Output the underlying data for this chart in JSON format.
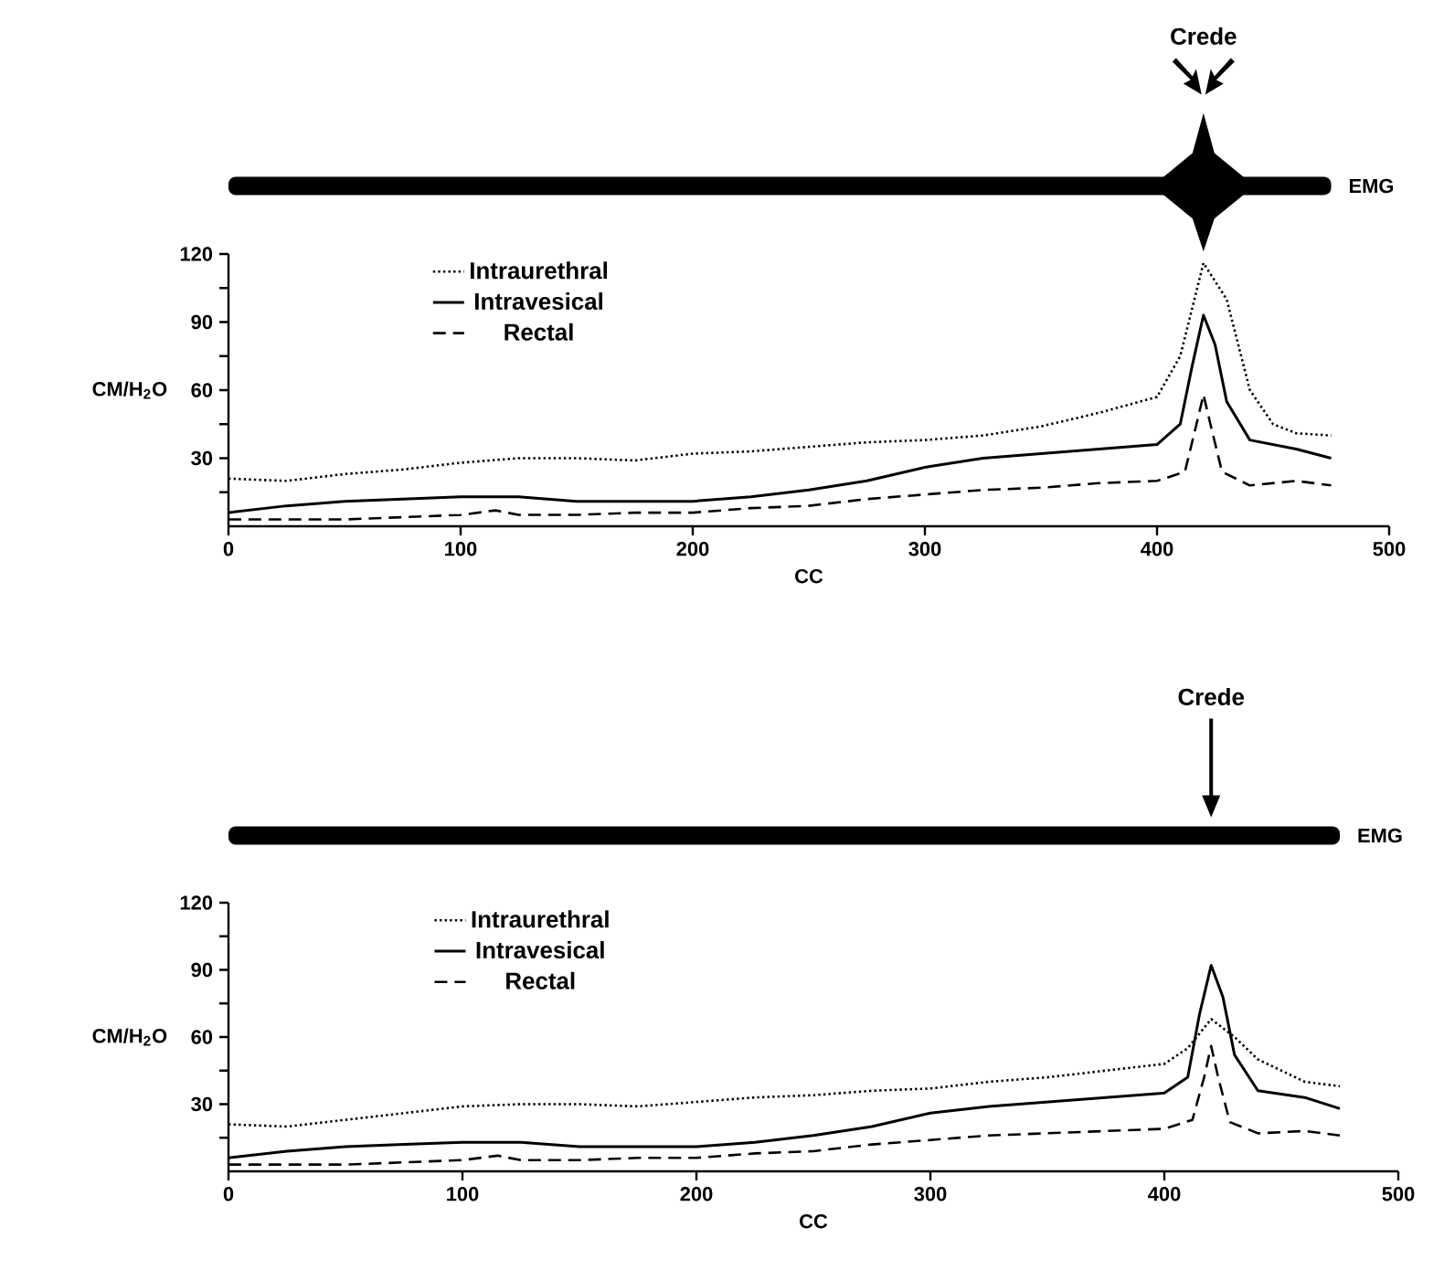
{
  "chart_data": [
    {
      "type": "line",
      "xlabel": "CC",
      "ylabel": "CM/H$_{2}$O",
      "xlim": [
        0,
        500
      ],
      "ylim": [
        0,
        120
      ],
      "xticks": [
        0,
        100,
        200,
        300,
        400,
        500
      ],
      "yticks": [
        {
          "value": 15,
          "label": null
        },
        30,
        {
          "value": 45,
          "label": null
        },
        60,
        {
          "value": 75,
          "label": null
        },
        90,
        {
          "value": 105,
          "label": null
        },
        120
      ],
      "grid": false,
      "legend": "top left",
      "annotations": [
        "Crede",
        "EMG"
      ],
      "series": [
        {
          "name": "Intraurethral",
          "color": "#000000",
          "line_style": "dotted",
          "x": [
            0,
            25,
            50,
            75,
            100,
            125,
            150,
            175,
            200,
            225,
            250,
            275,
            300,
            325,
            350,
            375,
            400,
            410,
            420,
            430,
            440,
            450,
            460,
            475
          ],
          "values": [
            21,
            20,
            23,
            25,
            28,
            30,
            30,
            29,
            32,
            33,
            35,
            37,
            38,
            40,
            44,
            50,
            57,
            75,
            116,
            100,
            60,
            45,
            41,
            40
          ]
        },
        {
          "name": "Intravesical",
          "color": "#000000",
          "line_style": "solid",
          "x": [
            0,
            25,
            50,
            75,
            100,
            125,
            150,
            175,
            200,
            225,
            250,
            275,
            300,
            325,
            350,
            375,
            400,
            410,
            415,
            420,
            425,
            430,
            440,
            460,
            475
          ],
          "values": [
            6,
            9,
            11,
            12,
            13,
            13,
            11,
            11,
            11,
            13,
            16,
            20,
            26,
            30,
            32,
            34,
            36,
            45,
            70,
            93,
            80,
            55,
            38,
            34,
            30
          ]
        },
        {
          "name": "Rectal",
          "color": "#000000",
          "line_style": "dashed",
          "x": [
            0,
            25,
            50,
            75,
            100,
            115,
            125,
            150,
            175,
            200,
            225,
            250,
            275,
            300,
            325,
            350,
            375,
            400,
            412,
            417,
            420,
            423,
            428,
            440,
            460,
            475
          ],
          "values": [
            3,
            3,
            3,
            4,
            5,
            7,
            5,
            5,
            6,
            6,
            8,
            9,
            12,
            14,
            16,
            17,
            19,
            20,
            24,
            45,
            58,
            45,
            24,
            18,
            20,
            18
          ]
        }
      ]
    },
    {
      "type": "line",
      "xlabel": "CC",
      "ylabel": "CM/H$_{2}$O",
      "xlim": [
        0,
        500
      ],
      "ylim": [
        0,
        120
      ],
      "xticks": [
        0,
        100,
        200,
        300,
        400,
        500
      ],
      "yticks": [
        {
          "value": 15,
          "label": null
        },
        30,
        {
          "value": 45,
          "label": null
        },
        60,
        {
          "value": 75,
          "label": null
        },
        90,
        {
          "value": 105,
          "label": null
        },
        120
      ],
      "grid": false,
      "legend": "top left",
      "annotations": [
        "Crede",
        "EMG"
      ],
      "series": [
        {
          "name": "Intraurethral",
          "color": "#000000",
          "line_style": "dotted",
          "x": [
            0,
            25,
            50,
            75,
            100,
            125,
            150,
            175,
            200,
            225,
            250,
            275,
            300,
            325,
            350,
            375,
            400,
            410,
            420,
            430,
            440,
            460,
            475
          ],
          "values": [
            21,
            20,
            23,
            26,
            29,
            30,
            30,
            29,
            31,
            33,
            34,
            36,
            37,
            40,
            42,
            45,
            48,
            55,
            68,
            60,
            50,
            40,
            38
          ]
        },
        {
          "name": "Intravesical",
          "color": "#000000",
          "line_style": "solid",
          "x": [
            0,
            25,
            50,
            75,
            100,
            125,
            150,
            175,
            200,
            225,
            250,
            275,
            300,
            325,
            350,
            375,
            400,
            410,
            415,
            420,
            425,
            430,
            440,
            460,
            475
          ],
          "values": [
            6,
            9,
            11,
            12,
            13,
            13,
            11,
            11,
            11,
            13,
            16,
            20,
            26,
            29,
            31,
            33,
            35,
            42,
            70,
            92,
            78,
            52,
            36,
            33,
            28
          ]
        },
        {
          "name": "Rectal",
          "color": "#000000",
          "line_style": "dashed",
          "x": [
            0,
            25,
            50,
            75,
            100,
            115,
            125,
            150,
            175,
            200,
            225,
            250,
            275,
            300,
            325,
            350,
            375,
            400,
            412,
            417,
            420,
            423,
            428,
            440,
            460,
            475
          ],
          "values": [
            3,
            3,
            3,
            4,
            5,
            7,
            5,
            5,
            6,
            6,
            8,
            9,
            12,
            14,
            16,
            17,
            18,
            19,
            23,
            42,
            56,
            42,
            22,
            17,
            18,
            16
          ]
        }
      ]
    }
  ]
}
